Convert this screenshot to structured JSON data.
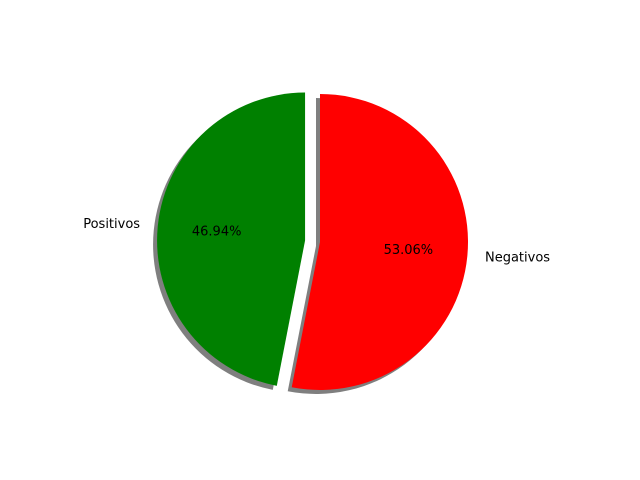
{
  "chart_data": {
    "type": "pie",
    "title": "",
    "slices": [
      {
        "label": "Positivos",
        "value": 46.94,
        "pct_label": "46.94%",
        "color": "#008000",
        "exploded": true
      },
      {
        "label": "Negativos",
        "value": 53.06,
        "pct_label": "53.06%",
        "color": "#ff0000",
        "exploded": false
      }
    ],
    "start_angle_deg": 90,
    "direction": "counterclockwise",
    "shadow": true,
    "legend": "none"
  }
}
